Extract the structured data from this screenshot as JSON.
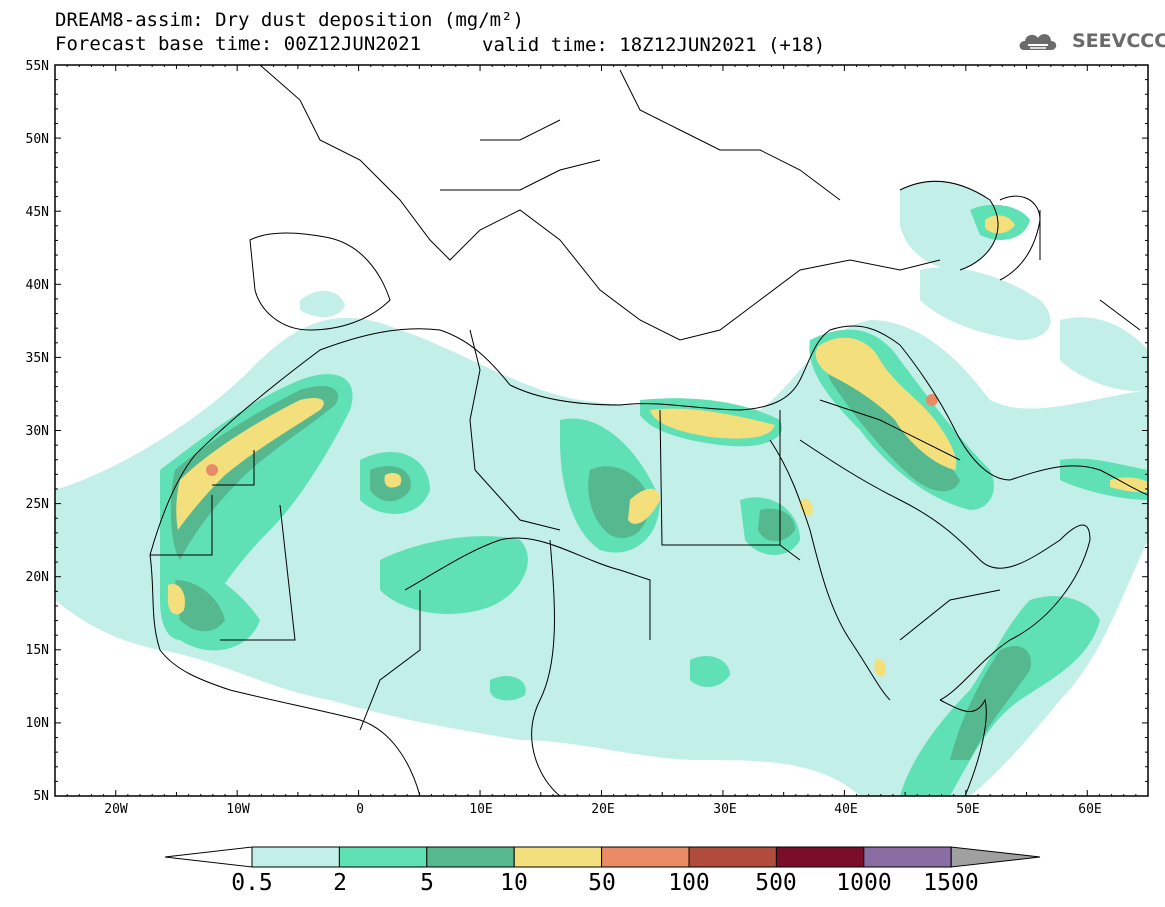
{
  "header": {
    "title_line1": "DREAM8-assim: Dry dust deposition (mg/m²)",
    "title_line2": "Forecast base time: 00Z12JUN2021",
    "valid_time": "valid time: 18Z12JUN2021 (+18)",
    "logo_text": "SEEVCCC"
  },
  "axes": {
    "lat_labels": [
      "55N",
      "50N",
      "45N",
      "40N",
      "35N",
      "30N",
      "25N",
      "20N",
      "15N",
      "10N",
      "5N"
    ],
    "lon_labels": [
      "20W",
      "10W",
      "0",
      "10E",
      "20E",
      "30E",
      "40E",
      "50E",
      "60E"
    ]
  },
  "legend": {
    "labels": [
      "0.5",
      "2",
      "5",
      "10",
      "50",
      "100",
      "500",
      "1000",
      "1500"
    ],
    "colors": [
      "#c2efe8",
      "#5fe0b5",
      "#55b88f",
      "#f3e07d",
      "#e98c65",
      "#b14c3c",
      "#7a0e2a",
      "#8a6da3",
      "#a0a0a0"
    ]
  },
  "map_colors": {
    "land_outline": "#000000",
    "level1": "#c2efe8",
    "level2": "#5fe0b5",
    "level3": "#55b88f",
    "level4": "#f3e07d",
    "level5": "#e98c65"
  }
}
